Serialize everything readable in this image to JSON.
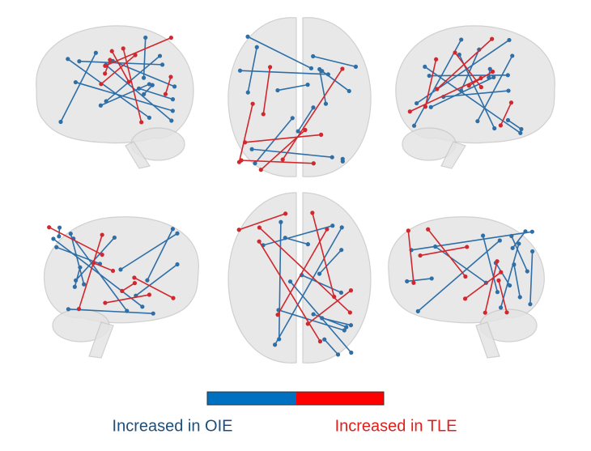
{
  "legend": {
    "colorbar": [
      {
        "color": "#0070c0"
      },
      {
        "color": "#ff0000"
      }
    ],
    "items": [
      {
        "label": "Increased in OIE",
        "color": "#1f4e79"
      },
      {
        "label": "Increased in TLE",
        "color": "#e0201c"
      }
    ]
  }
}
